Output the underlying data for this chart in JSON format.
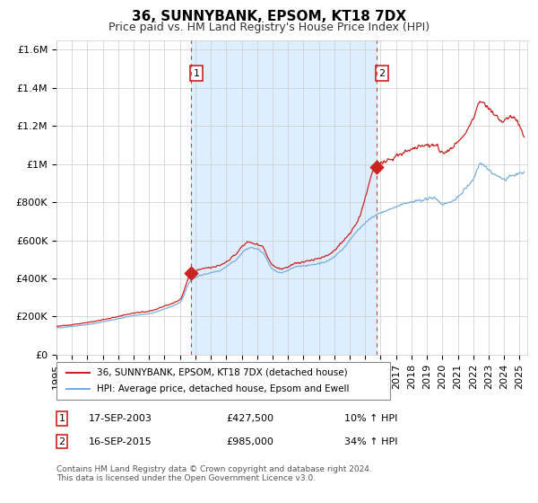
{
  "title": "36, SUNNYBANK, EPSOM, KT18 7DX",
  "subtitle": "Price paid vs. HM Land Registry's House Price Index (HPI)",
  "ylim": [
    0,
    1650000
  ],
  "xlim_start": 1995.0,
  "xlim_end": 2025.5,
  "yticks": [
    0,
    200000,
    400000,
    600000,
    800000,
    1000000,
    1200000,
    1400000,
    1600000
  ],
  "ytick_labels": [
    "£0",
    "£200K",
    "£400K",
    "£600K",
    "£800K",
    "£1M",
    "£1.2M",
    "£1.4M",
    "£1.6M"
  ],
  "xticks": [
    1995,
    1996,
    1997,
    1998,
    1999,
    2000,
    2001,
    2002,
    2003,
    2004,
    2005,
    2006,
    2007,
    2008,
    2009,
    2010,
    2011,
    2012,
    2013,
    2014,
    2015,
    2016,
    2017,
    2018,
    2019,
    2020,
    2021,
    2022,
    2023,
    2024,
    2025
  ],
  "hpi_color": "#7aaddd",
  "price_color": "#cc2222",
  "bg_color": "#ddeeff",
  "purchase1_year": 2003.712,
  "purchase1_price": 427500,
  "purchase1_label": "1",
  "purchase2_year": 2015.712,
  "purchase2_price": 985000,
  "purchase2_label": "2",
  "shade_start": 2003.712,
  "shade_end": 2015.712,
  "legend_line1": "36, SUNNYBANK, EPSOM, KT18 7DX (detached house)",
  "legend_line2": "HPI: Average price, detached house, Epsom and Ewell",
  "table_row1_num": "1",
  "table_row1_date": "17-SEP-2003",
  "table_row1_price": "£427,500",
  "table_row1_hpi": "10% ↑ HPI",
  "table_row2_num": "2",
  "table_row2_date": "16-SEP-2015",
  "table_row2_price": "£985,000",
  "table_row2_hpi": "34% ↑ HPI",
  "footer": "Contains HM Land Registry data © Crown copyright and database right 2024.\nThis data is licensed under the Open Government Licence v3.0.",
  "grid_color": "#cccccc",
  "title_fontsize": 11,
  "subtitle_fontsize": 9,
  "tick_fontsize": 8
}
